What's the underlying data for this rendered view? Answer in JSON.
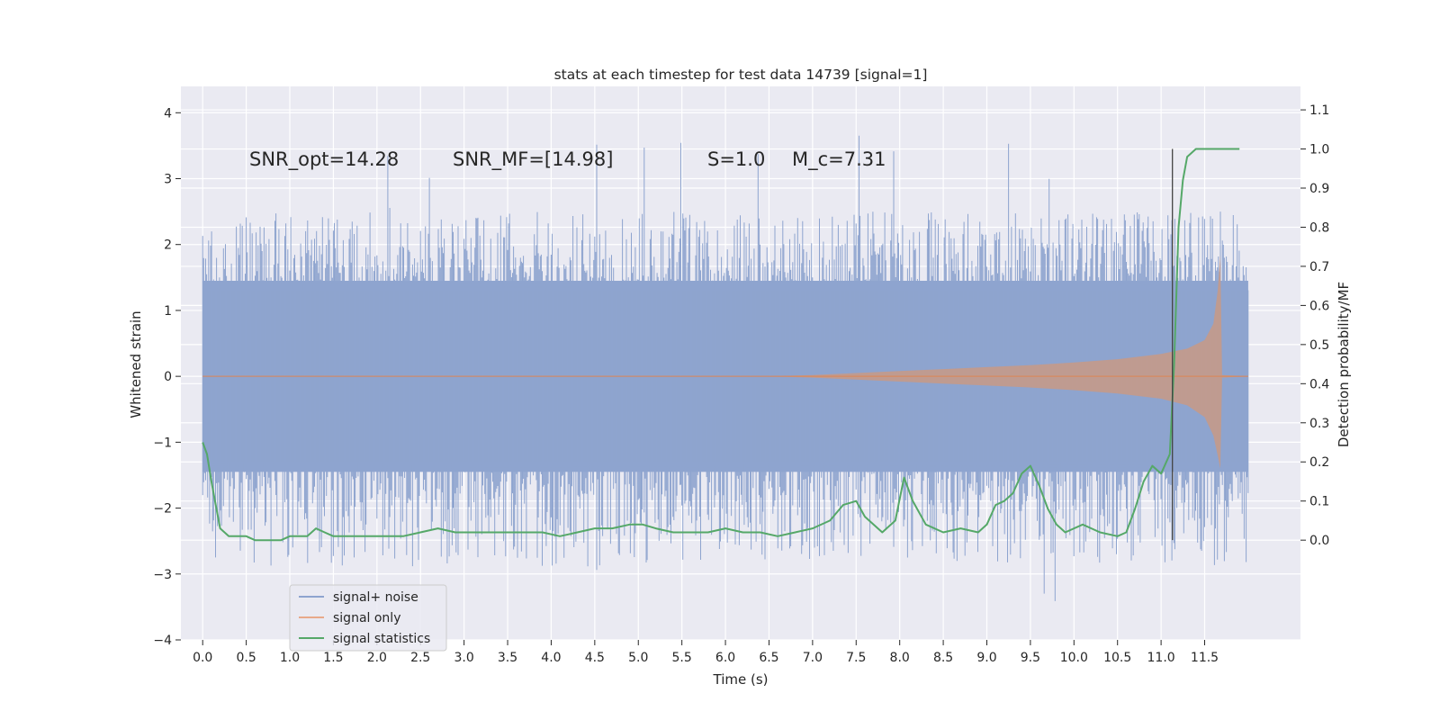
{
  "chart_data": {
    "type": "line",
    "title": "stats at each timestep for test data 14739 [signal=1]",
    "xlabel": "Time (s)",
    "ylabel_left": "Whitened strain",
    "ylabel_right": "Detection probability/MF",
    "xlim": [
      -0.25,
      12.6
    ],
    "ylim_left": [
      -4.0,
      4.4
    ],
    "ylim_right": [
      -0.255,
      1.16
    ],
    "x_ticks": [
      0.0,
      0.5,
      1.0,
      1.5,
      2.0,
      2.5,
      3.0,
      3.5,
      4.0,
      4.5,
      5.0,
      5.5,
      6.0,
      6.5,
      7.0,
      7.5,
      8.0,
      8.5,
      9.0,
      9.5,
      10.0,
      10.5,
      11.0,
      11.5
    ],
    "x_tick_labels": [
      "0.0",
      "0.5",
      "1.0",
      "1.5",
      "2.0",
      "2.5",
      "3.0",
      "3.5",
      "4.0",
      "4.5",
      "5.0",
      "5.5",
      "6.0",
      "6.5",
      "7.0",
      "7.5",
      "8.0",
      "8.5",
      "9.0",
      "9.5",
      "10.0",
      "10.5",
      "11.0",
      "11.5"
    ],
    "y_left_ticks": [
      -4,
      -3,
      -2,
      -1,
      0,
      1,
      2,
      3,
      4
    ],
    "y_left_tick_labels": [
      "−4",
      "−3",
      "−2",
      "−1",
      "0",
      "1",
      "2",
      "3",
      "4"
    ],
    "y_right_ticks": [
      0.0,
      0.1,
      0.2,
      0.3,
      0.4,
      0.5,
      0.6,
      0.7,
      0.8,
      0.9,
      1.0,
      1.1
    ],
    "y_right_tick_labels": [
      "0.0",
      "0.1",
      "0.2",
      "0.3",
      "0.4",
      "0.5",
      "0.6",
      "0.7",
      "0.8",
      "0.9",
      "1.0",
      "1.1"
    ],
    "grid": true,
    "legend_position": "lower-left",
    "annotations": [
      {
        "text": "SNR_opt=14.28",
        "x": 0.2,
        "y": 3.3
      },
      {
        "text": "SNR_MF=[14.98]",
        "x": 2.6,
        "y": 3.3
      },
      {
        "text": "S=1.0",
        "x": 5.6,
        "y": 3.3
      },
      {
        "text": "M_c=7.31",
        "x": 6.6,
        "y": 3.3
      }
    ],
    "vertical_marker_x": 11.13,
    "series": [
      {
        "name": "signal+ noise",
        "color": "#8ea4cf",
        "axis": "left",
        "kind": "noise",
        "x_range": [
          0.0,
          12.0
        ],
        "core_band": [
          -1.45,
          1.45
        ],
        "spike_max": [
          2.2,
          3.7
        ],
        "spike_min": [
          -2.6,
          -3.7
        ]
      },
      {
        "name": "signal only",
        "color": "#dd8452",
        "axis": "left",
        "kind": "chirp_envelope",
        "x": [
          0.0,
          6.5,
          7.0,
          7.5,
          8.0,
          8.5,
          9.0,
          9.5,
          10.0,
          10.5,
          11.0,
          11.3,
          11.5,
          11.6,
          11.65,
          11.68,
          11.7,
          12.0
        ],
        "upper": [
          0.0,
          0.0,
          0.02,
          0.05,
          0.08,
          0.11,
          0.14,
          0.17,
          0.21,
          0.26,
          0.34,
          0.42,
          0.55,
          0.8,
          1.3,
          1.85,
          0.02,
          0.0
        ],
        "lower": [
          0.0,
          0.0,
          -0.02,
          -0.05,
          -0.08,
          -0.11,
          -0.14,
          -0.17,
          -0.21,
          -0.26,
          -0.34,
          -0.44,
          -0.62,
          -0.9,
          -1.2,
          -1.4,
          -0.02,
          0.0
        ]
      },
      {
        "name": "signal statistics",
        "color": "#55a868",
        "axis": "right",
        "kind": "line",
        "x": [
          0.0,
          0.05,
          0.1,
          0.15,
          0.2,
          0.3,
          0.4,
          0.5,
          0.6,
          0.7,
          0.8,
          0.9,
          1.0,
          1.1,
          1.2,
          1.3,
          1.4,
          1.5,
          1.7,
          1.9,
          2.1,
          2.3,
          2.5,
          2.7,
          2.9,
          3.1,
          3.3,
          3.5,
          3.7,
          3.9,
          4.1,
          4.3,
          4.5,
          4.7,
          4.9,
          5.05,
          5.2,
          5.4,
          5.6,
          5.8,
          6.0,
          6.2,
          6.4,
          6.6,
          6.8,
          7.0,
          7.2,
          7.35,
          7.5,
          7.6,
          7.8,
          7.95,
          8.05,
          8.15,
          8.3,
          8.5,
          8.7,
          8.9,
          9.0,
          9.1,
          9.2,
          9.3,
          9.4,
          9.5,
          9.6,
          9.7,
          9.8,
          9.9,
          10.1,
          10.3,
          10.5,
          10.6,
          10.7,
          10.8,
          10.9,
          11.0,
          11.1,
          11.15,
          11.2,
          11.25,
          11.3,
          11.4,
          11.5,
          11.6,
          11.8,
          11.9
        ],
        "y": [
          0.25,
          0.22,
          0.15,
          0.09,
          0.03,
          0.01,
          0.01,
          0.01,
          0.0,
          0.0,
          0.0,
          0.0,
          0.01,
          0.01,
          0.01,
          0.03,
          0.02,
          0.01,
          0.01,
          0.01,
          0.01,
          0.01,
          0.02,
          0.03,
          0.02,
          0.02,
          0.02,
          0.02,
          0.02,
          0.02,
          0.01,
          0.02,
          0.03,
          0.03,
          0.04,
          0.04,
          0.03,
          0.02,
          0.02,
          0.02,
          0.03,
          0.02,
          0.02,
          0.01,
          0.02,
          0.03,
          0.05,
          0.09,
          0.1,
          0.06,
          0.02,
          0.05,
          0.16,
          0.1,
          0.04,
          0.02,
          0.03,
          0.02,
          0.04,
          0.09,
          0.1,
          0.12,
          0.17,
          0.19,
          0.14,
          0.08,
          0.04,
          0.02,
          0.04,
          0.02,
          0.01,
          0.02,
          0.08,
          0.15,
          0.19,
          0.17,
          0.22,
          0.45,
          0.8,
          0.92,
          0.98,
          1.0,
          1.0,
          1.0,
          1.0,
          1.0
        ]
      }
    ]
  }
}
